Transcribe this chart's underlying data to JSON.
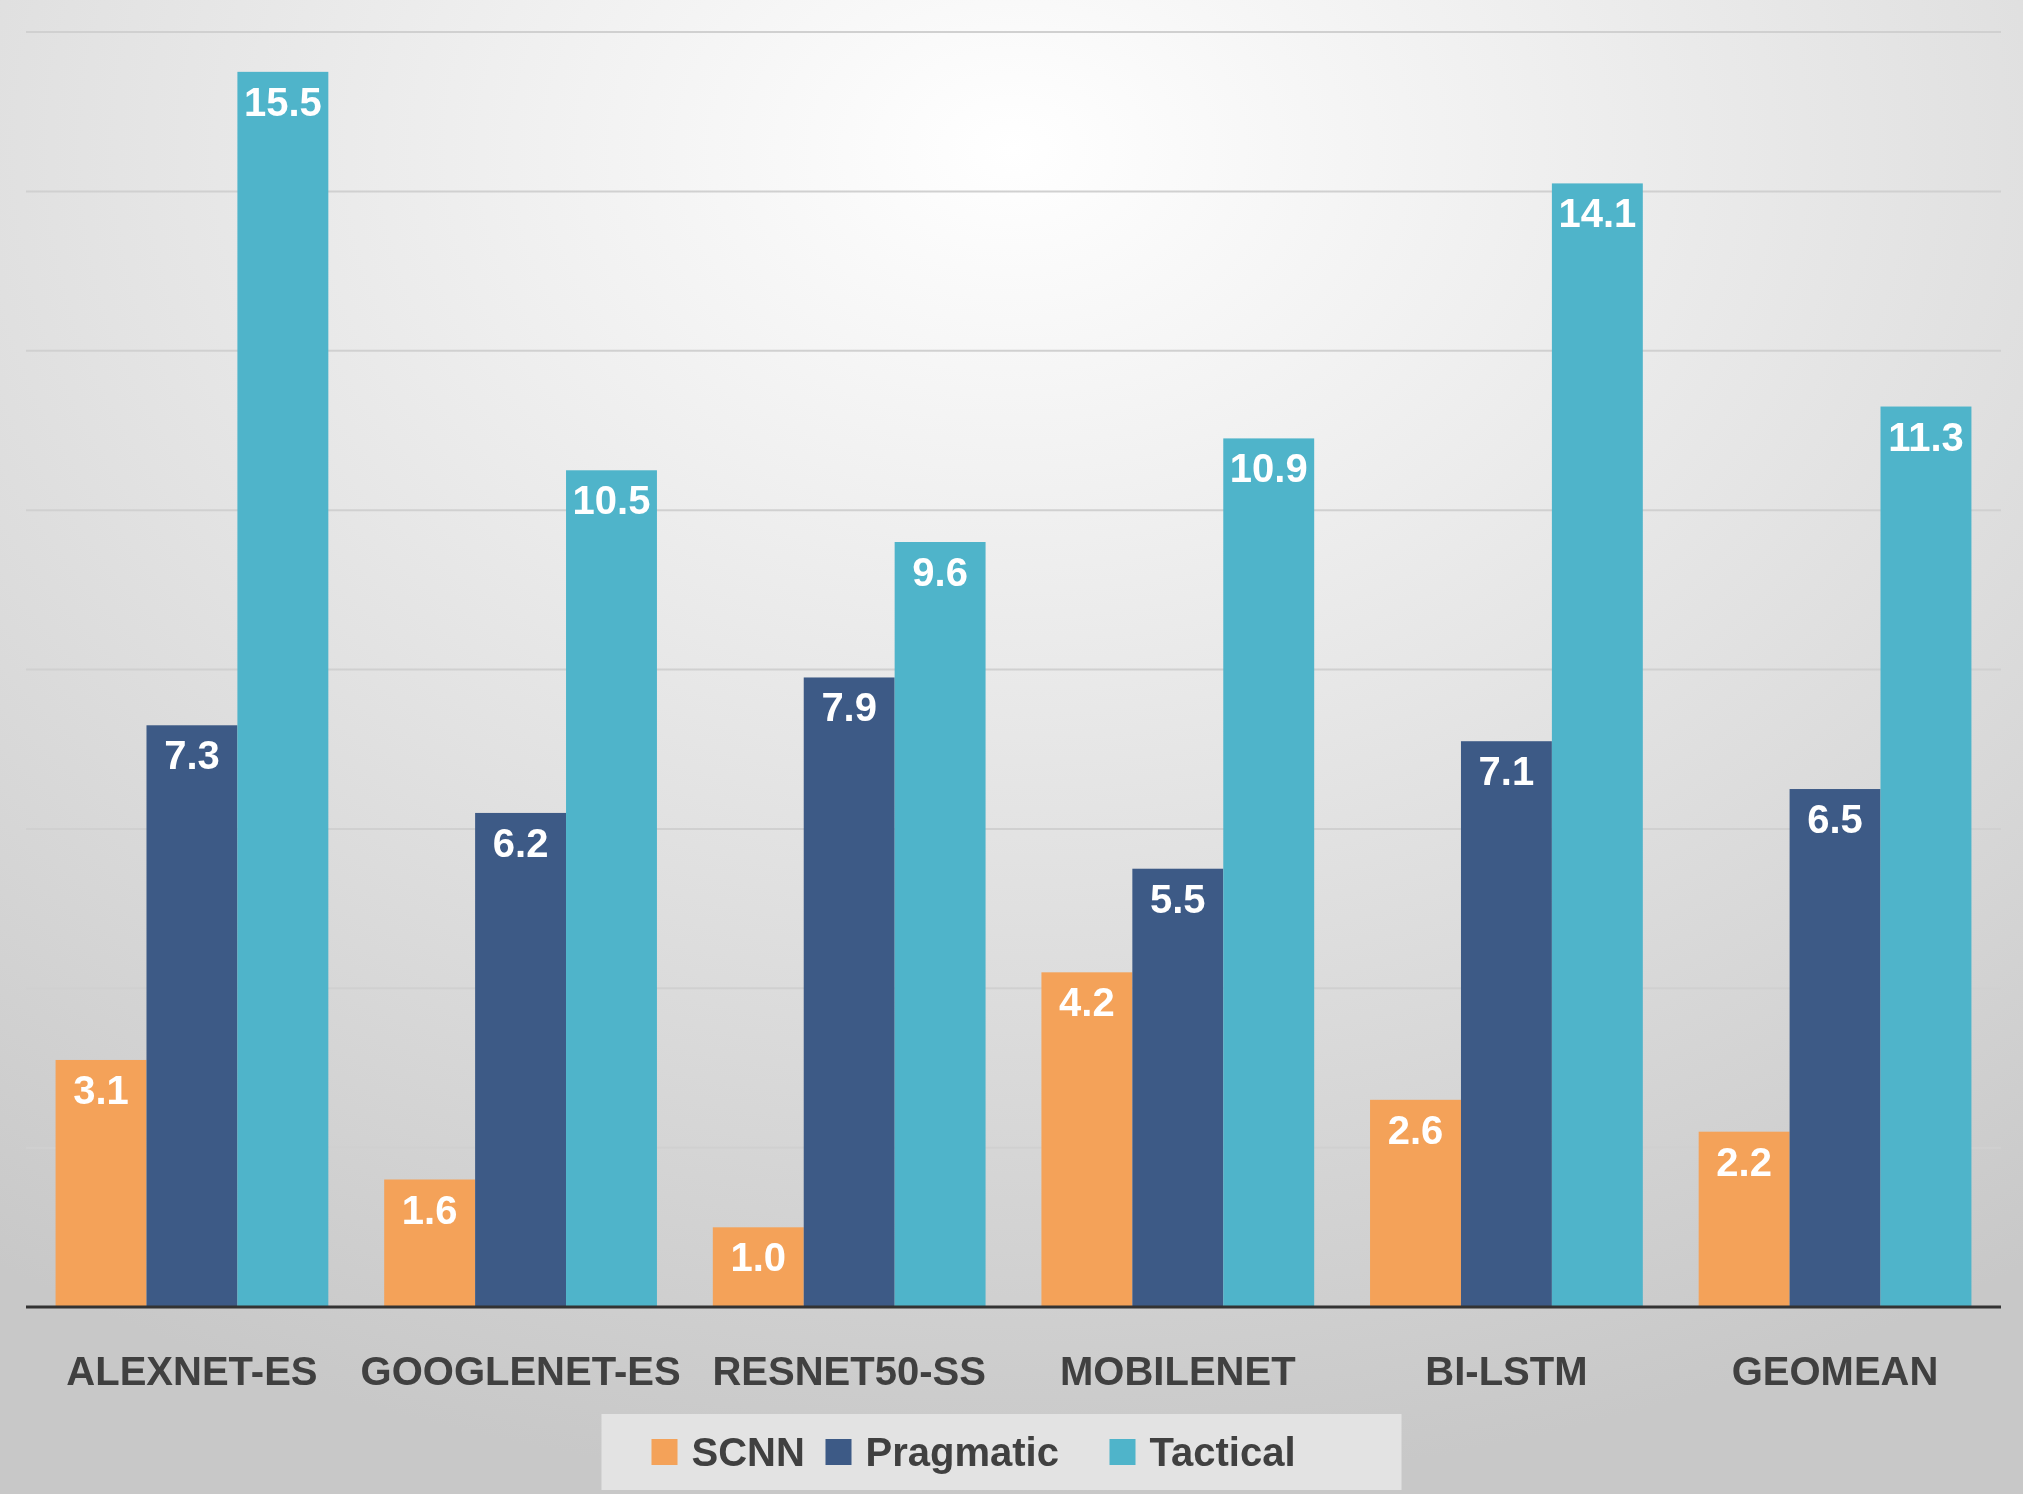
{
  "chart_data": {
    "type": "bar",
    "categories": [
      "ALEXNET-ES",
      "GOOGLENET-ES",
      "RESNET50-SS",
      "MOBILENET",
      "BI-LSTM",
      "GEOMEAN"
    ],
    "series": [
      {
        "name": "SCNN",
        "color": "#f4a259",
        "values": [
          3.1,
          1.6,
          1.0,
          4.2,
          2.6,
          2.2
        ],
        "value_labels": [
          "3.1",
          "1.6",
          "1.0",
          "4.2",
          "2.6",
          "2.2"
        ]
      },
      {
        "name": "Pragmatic",
        "color": "#3d5a86",
        "values": [
          7.3,
          6.2,
          7.9,
          5.5,
          7.1,
          6.5
        ],
        "value_labels": [
          "7.3",
          "6.2",
          "7.9",
          "5.5",
          "7.1",
          "6.5"
        ]
      },
      {
        "name": "Tactical",
        "color": "#4fb4ca",
        "values": [
          15.5,
          10.5,
          9.6,
          10.9,
          14.1,
          11.3
        ],
        "value_labels": [
          "15.5",
          "10.5",
          "9.6",
          "10.9",
          "14.1",
          "11.3"
        ]
      }
    ],
    "ylim": [
      0,
      16
    ],
    "yticks": [
      {
        "value": 0,
        "label": null
      },
      {
        "value": 2,
        "label": null
      },
      {
        "value": 4,
        "label": null
      },
      {
        "value": 6,
        "label": null
      },
      {
        "value": 8,
        "label": null
      },
      {
        "value": 10,
        "label": null
      },
      {
        "value": 12,
        "label": null
      },
      {
        "value": 14,
        "label": null
      },
      {
        "value": 16,
        "label": null
      }
    ],
    "tick_labels": "x",
    "grid": "y",
    "legend": "bottom"
  }
}
